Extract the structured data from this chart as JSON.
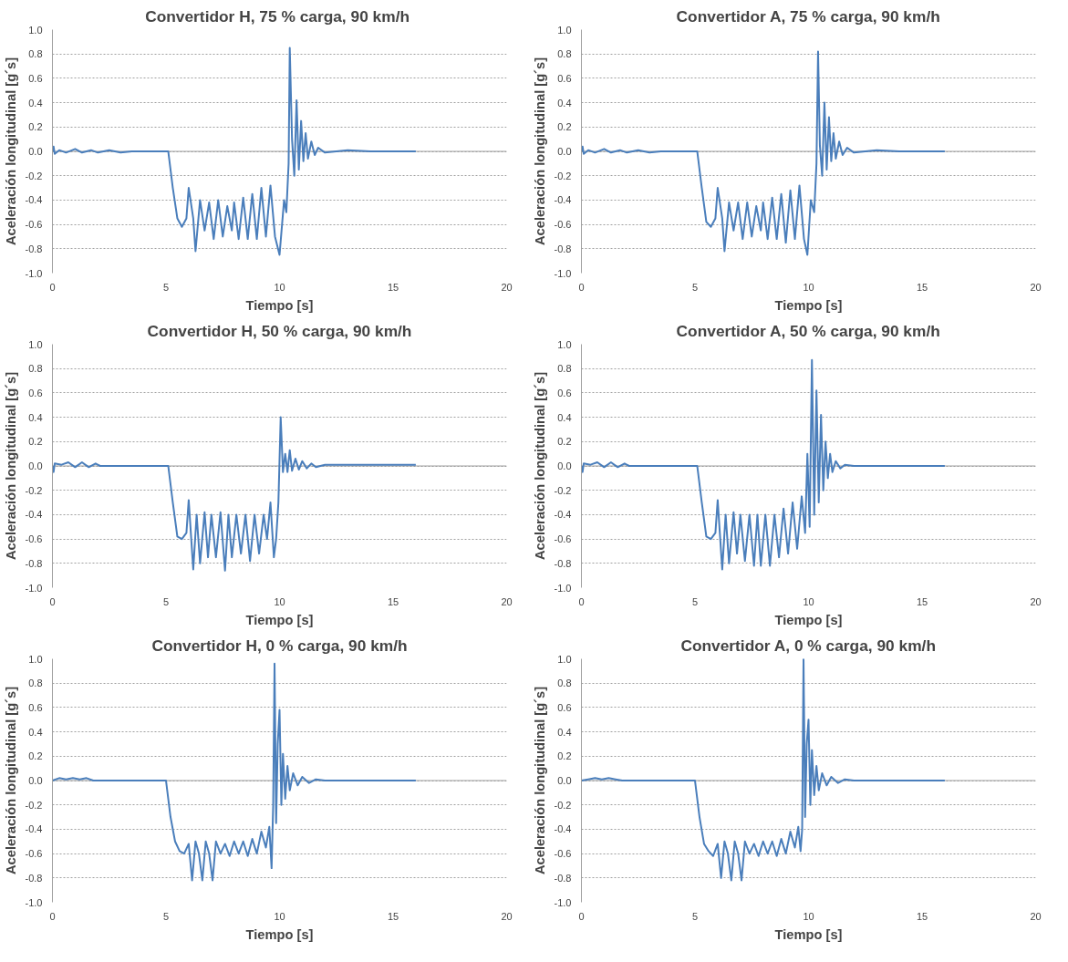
{
  "chart_data": [
    {
      "type": "line",
      "title": "Convertidor  H, 75 % carga, 90 km/h",
      "xlabel": "Tiempo [s]",
      "ylabel": "Aceleración longitudinal [g´s]",
      "xlim": [
        0,
        20
      ],
      "ylim": [
        -1,
        1
      ],
      "xticks": [
        0,
        5,
        10,
        15,
        20
      ],
      "yticks": [
        {
          "value": -1,
          "label": "-1.0"
        },
        {
          "value": -0.8,
          "label": "-0.8"
        },
        {
          "value": -0.6,
          "label": "-0.6"
        },
        {
          "value": -0.4,
          "label": "-0.4"
        },
        {
          "value": -0.2,
          "label": "-0.2"
        },
        {
          "value": 0,
          "label": "0.0"
        },
        {
          "value": 0.2,
          "label": "0.2"
        },
        {
          "value": 0.4,
          "label": "0.4"
        },
        {
          "value": 0.6,
          "label": "0.6"
        },
        {
          "value": 0.8,
          "label": "0.8"
        },
        {
          "value": 1,
          "label": "1.0"
        }
      ],
      "grid": "y",
      "legend": false,
      "series": [
        {
          "color": "#4a7ebb",
          "x": [
            0,
            0.05,
            0.1,
            0.3,
            0.6,
            1,
            1.3,
            1.7,
            2,
            2.5,
            3,
            3.5,
            5.1,
            5.3,
            5.5,
            5.7,
            5.9,
            6.0,
            6.2,
            6.3,
            6.5,
            6.7,
            6.9,
            7.1,
            7.3,
            7.5,
            7.7,
            7.9,
            8.0,
            8.2,
            8.4,
            8.6,
            8.8,
            9.0,
            9.2,
            9.4,
            9.6,
            9.8,
            10.0,
            10.2,
            10.3,
            10.4,
            10.45,
            10.55,
            10.65,
            10.75,
            10.85,
            10.95,
            11.05,
            11.15,
            11.25,
            11.4,
            11.55,
            11.7,
            12,
            13,
            14,
            16
          ],
          "values": [
            0,
            0.04,
            -0.02,
            0.01,
            -0.01,
            0.02,
            -0.01,
            0.01,
            -0.01,
            0.01,
            -0.01,
            0,
            0,
            -0.3,
            -0.55,
            -0.62,
            -0.55,
            -0.3,
            -0.55,
            -0.82,
            -0.4,
            -0.65,
            -0.42,
            -0.72,
            -0.4,
            -0.7,
            -0.45,
            -0.65,
            -0.42,
            -0.72,
            -0.38,
            -0.72,
            -0.35,
            -0.72,
            -0.3,
            -0.7,
            -0.28,
            -0.7,
            -0.85,
            -0.4,
            -0.5,
            -0.1,
            0.85,
            0.1,
            -0.2,
            0.42,
            -0.15,
            0.25,
            -0.08,
            0.15,
            -0.06,
            0.08,
            -0.03,
            0.03,
            -0.01,
            0.01,
            0,
            0
          ]
        }
      ]
    },
    {
      "type": "line",
      "title": "Convertidor A, 75 % carga, 90 km/h",
      "xlabel": "Tiempo [s]",
      "ylabel": "Aceleración longitudinal [g´s]",
      "xlim": [
        0,
        20
      ],
      "ylim": [
        -1,
        1
      ],
      "xticks": [
        0,
        5,
        10,
        15,
        20
      ],
      "yticks": [
        {
          "value": -1,
          "label": "-1.0"
        },
        {
          "value": -0.8,
          "label": "-0.8"
        },
        {
          "value": -0.6,
          "label": "-0.6"
        },
        {
          "value": -0.4,
          "label": "-0.4"
        },
        {
          "value": -0.2,
          "label": "-0.2"
        },
        {
          "value": 0,
          "label": "0.0"
        },
        {
          "value": 0.2,
          "label": "0.2"
        },
        {
          "value": 0.4,
          "label": "0.4"
        },
        {
          "value": 0.6,
          "label": "0.6"
        },
        {
          "value": 0.8,
          "label": "0.8"
        },
        {
          "value": 1,
          "label": "1.0"
        }
      ],
      "grid": "y",
      "legend": false,
      "series": [
        {
          "color": "#4a7ebb",
          "x": [
            0,
            0.05,
            0.1,
            0.3,
            0.6,
            1,
            1.3,
            1.7,
            2,
            2.5,
            3,
            3.5,
            5.1,
            5.3,
            5.5,
            5.7,
            5.9,
            6.0,
            6.2,
            6.3,
            6.5,
            6.7,
            6.9,
            7.1,
            7.3,
            7.5,
            7.7,
            7.9,
            8.0,
            8.2,
            8.4,
            8.6,
            8.8,
            9.0,
            9.2,
            9.4,
            9.6,
            9.8,
            9.95,
            10.1,
            10.25,
            10.35,
            10.42,
            10.5,
            10.6,
            10.7,
            10.8,
            10.9,
            11.0,
            11.1,
            11.2,
            11.35,
            11.5,
            11.7,
            12,
            13,
            14,
            16
          ],
          "values": [
            0,
            0.04,
            -0.02,
            0.01,
            -0.01,
            0.02,
            -0.01,
            0.01,
            -0.01,
            0.01,
            -0.01,
            0,
            0,
            -0.3,
            -0.58,
            -0.62,
            -0.55,
            -0.3,
            -0.55,
            -0.82,
            -0.42,
            -0.65,
            -0.42,
            -0.72,
            -0.42,
            -0.7,
            -0.45,
            -0.65,
            -0.42,
            -0.72,
            -0.38,
            -0.72,
            -0.35,
            -0.75,
            -0.32,
            -0.72,
            -0.28,
            -0.72,
            -0.85,
            -0.4,
            -0.5,
            -0.1,
            0.82,
            0.05,
            -0.2,
            0.4,
            -0.15,
            0.28,
            -0.08,
            0.15,
            -0.06,
            0.08,
            -0.03,
            0.03,
            -0.01,
            0.01,
            0,
            0
          ]
        }
      ]
    },
    {
      "type": "line",
      "title": "Convertidor H, 50 % carga, 90 km/h",
      "xlabel": "Tiempo [s]",
      "ylabel": "Aceleración longitudinal [g´s]",
      "xlim": [
        0,
        20
      ],
      "ylim": [
        -1,
        1
      ],
      "xticks": [
        0,
        5,
        10,
        15,
        20
      ],
      "yticks": [
        {
          "value": -1,
          "label": "-1.0"
        },
        {
          "value": -0.8,
          "label": "-0.8"
        },
        {
          "value": -0.6,
          "label": "-0.6"
        },
        {
          "value": -0.4,
          "label": "-0.4"
        },
        {
          "value": -0.2,
          "label": "-0.2"
        },
        {
          "value": 0,
          "label": "0.0"
        },
        {
          "value": 0.2,
          "label": "0.2"
        },
        {
          "value": 0.4,
          "label": "0.4"
        },
        {
          "value": 0.6,
          "label": "0.6"
        },
        {
          "value": 0.8,
          "label": "0.8"
        },
        {
          "value": 1,
          "label": "1.0"
        }
      ],
      "grid": "y",
      "legend": false,
      "series": [
        {
          "color": "#4a7ebb",
          "x": [
            0,
            0.05,
            0.1,
            0.4,
            0.7,
            1,
            1.3,
            1.6,
            1.9,
            2.1,
            3,
            5.1,
            5.3,
            5.5,
            5.7,
            5.9,
            6.0,
            6.2,
            6.35,
            6.5,
            6.7,
            6.85,
            7.0,
            7.2,
            7.4,
            7.6,
            7.75,
            7.9,
            8.1,
            8.3,
            8.5,
            8.7,
            8.9,
            9.1,
            9.3,
            9.45,
            9.6,
            9.75,
            9.85,
            9.95,
            10.05,
            10.15,
            10.25,
            10.35,
            10.45,
            10.55,
            10.7,
            10.85,
            11.0,
            11.2,
            11.4,
            11.6,
            12,
            13,
            14,
            16
          ],
          "values": [
            0,
            -0.05,
            0.02,
            0.01,
            0.03,
            -0.01,
            0.03,
            -0.01,
            0.02,
            0,
            0,
            0,
            -0.3,
            -0.58,
            -0.6,
            -0.55,
            -0.28,
            -0.85,
            -0.4,
            -0.8,
            -0.38,
            -0.75,
            -0.4,
            -0.75,
            -0.38,
            -0.86,
            -0.4,
            -0.75,
            -0.4,
            -0.72,
            -0.4,
            -0.78,
            -0.4,
            -0.72,
            -0.4,
            -0.6,
            -0.3,
            -0.75,
            -0.6,
            -0.3,
            0.4,
            -0.05,
            0.1,
            -0.05,
            0.13,
            -0.04,
            0.06,
            -0.03,
            0.04,
            -0.02,
            0.02,
            -0.01,
            0.01,
            0.01,
            0.01,
            0.01
          ]
        }
      ]
    },
    {
      "type": "line",
      "title": "Convertidor A, 50 % carga, 90 km/h",
      "xlabel": "Tiempo [s]",
      "ylabel": "Aceleración longitudinal [g´s]",
      "xlim": [
        0,
        20
      ],
      "ylim": [
        -1,
        1
      ],
      "xticks": [
        0,
        5,
        10,
        15,
        20
      ],
      "yticks": [
        {
          "value": -1,
          "label": "-1.0"
        },
        {
          "value": -0.8,
          "label": "-0.8"
        },
        {
          "value": -0.6,
          "label": "-0.6"
        },
        {
          "value": -0.4,
          "label": "-0.4"
        },
        {
          "value": -0.2,
          "label": "-0.2"
        },
        {
          "value": 0,
          "label": "0.0"
        },
        {
          "value": 0.2,
          "label": "0.2"
        },
        {
          "value": 0.4,
          "label": "0.4"
        },
        {
          "value": 0.6,
          "label": "0.6"
        },
        {
          "value": 0.8,
          "label": "0.8"
        },
        {
          "value": 1,
          "label": "1.0"
        }
      ],
      "grid": "y",
      "legend": false,
      "series": [
        {
          "color": "#4a7ebb",
          "x": [
            0,
            0.05,
            0.1,
            0.4,
            0.7,
            1,
            1.3,
            1.6,
            1.9,
            2.1,
            3,
            5.1,
            5.3,
            5.5,
            5.7,
            5.9,
            6.0,
            6.2,
            6.35,
            6.5,
            6.7,
            6.85,
            7.0,
            7.2,
            7.4,
            7.6,
            7.75,
            7.9,
            8.1,
            8.3,
            8.5,
            8.7,
            8.9,
            9.1,
            9.3,
            9.5,
            9.7,
            9.85,
            9.95,
            10.05,
            10.15,
            10.25,
            10.35,
            10.45,
            10.55,
            10.65,
            10.75,
            10.85,
            10.95,
            11.05,
            11.2,
            11.4,
            11.6,
            12,
            13,
            14,
            16
          ],
          "values": [
            0,
            -0.05,
            0.02,
            0.01,
            0.03,
            -0.01,
            0.03,
            -0.01,
            0.02,
            0,
            0,
            0,
            -0.3,
            -0.58,
            -0.6,
            -0.55,
            -0.28,
            -0.85,
            -0.4,
            -0.8,
            -0.38,
            -0.72,
            -0.4,
            -0.78,
            -0.4,
            -0.82,
            -0.4,
            -0.82,
            -0.4,
            -0.82,
            -0.4,
            -0.75,
            -0.35,
            -0.72,
            -0.3,
            -0.68,
            -0.25,
            -0.55,
            0.1,
            -0.5,
            0.87,
            -0.4,
            0.62,
            -0.3,
            0.42,
            -0.2,
            0.2,
            -0.1,
            0.1,
            -0.05,
            0.04,
            -0.02,
            0.01,
            0,
            0,
            0,
            0
          ]
        }
      ]
    },
    {
      "type": "line",
      "title": "Convertidor H, 0 % carga, 90 km/h",
      "xlabel": "Tiempo [s]",
      "ylabel": "Aceleración longitudinal [g´s]",
      "xlim": [
        0,
        20
      ],
      "ylim": [
        -1,
        1
      ],
      "xticks": [
        0,
        5,
        10,
        15,
        20
      ],
      "yticks": [
        {
          "value": -1,
          "label": "-1.0"
        },
        {
          "value": -0.8,
          "label": "-0.8"
        },
        {
          "value": -0.6,
          "label": "-0.6"
        },
        {
          "value": -0.4,
          "label": "-0.4"
        },
        {
          "value": -0.2,
          "label": "-0.2"
        },
        {
          "value": 0,
          "label": "0.0"
        },
        {
          "value": 0.2,
          "label": "0.2"
        },
        {
          "value": 0.4,
          "label": "0.4"
        },
        {
          "value": 0.6,
          "label": "0.6"
        },
        {
          "value": 0.8,
          "label": "0.8"
        },
        {
          "value": 1,
          "label": "1.0"
        }
      ],
      "grid": "y",
      "legend": false,
      "series": [
        {
          "color": "#4a7ebb",
          "x": [
            0,
            0.3,
            0.6,
            0.9,
            1.2,
            1.5,
            1.8,
            2.5,
            3,
            5.0,
            5.2,
            5.4,
            5.6,
            5.8,
            6.0,
            6.15,
            6.3,
            6.45,
            6.6,
            6.75,
            6.9,
            7.05,
            7.2,
            7.4,
            7.6,
            7.8,
            8.0,
            8.2,
            8.4,
            8.6,
            8.8,
            9.0,
            9.2,
            9.4,
            9.55,
            9.65,
            9.72,
            9.78,
            9.85,
            9.92,
            10.0,
            10.08,
            10.15,
            10.25,
            10.35,
            10.45,
            10.6,
            10.8,
            11.0,
            11.3,
            11.6,
            12,
            13,
            14,
            16
          ],
          "values": [
            0,
            0.02,
            0.01,
            0.02,
            0.01,
            0.02,
            0,
            0,
            0,
            0,
            -0.3,
            -0.5,
            -0.58,
            -0.6,
            -0.52,
            -0.82,
            -0.5,
            -0.6,
            -0.82,
            -0.5,
            -0.6,
            -0.82,
            -0.5,
            -0.6,
            -0.52,
            -0.62,
            -0.5,
            -0.6,
            -0.5,
            -0.62,
            -0.48,
            -0.6,
            -0.42,
            -0.55,
            -0.38,
            -0.72,
            -0.2,
            0.96,
            -0.35,
            0.3,
            0.58,
            -0.2,
            0.22,
            -0.15,
            0.12,
            -0.08,
            0.06,
            -0.04,
            0.03,
            -0.02,
            0.01,
            0,
            0,
            0,
            0
          ]
        }
      ]
    },
    {
      "type": "line",
      "title": "Convertidor A, 0 % carga, 90 km/h",
      "xlabel": "Tiempo [s]",
      "ylabel": "Aceleración longitudinal [g´s]",
      "xlim": [
        0,
        20
      ],
      "ylim": [
        -1,
        1
      ],
      "xticks": [
        0,
        5,
        10,
        15,
        20
      ],
      "yticks": [
        {
          "value": -1,
          "label": "-1.0"
        },
        {
          "value": -0.8,
          "label": "-0.8"
        },
        {
          "value": -0.6,
          "label": "-0.6"
        },
        {
          "value": -0.4,
          "label": "-0.4"
        },
        {
          "value": -0.2,
          "label": "-0.2"
        },
        {
          "value": 0,
          "label": "0.0"
        },
        {
          "value": 0.2,
          "label": "0.2"
        },
        {
          "value": 0.4,
          "label": "0.4"
        },
        {
          "value": 0.6,
          "label": "0.6"
        },
        {
          "value": 0.8,
          "label": "0.8"
        },
        {
          "value": 1,
          "label": "1.0"
        }
      ],
      "grid": "y",
      "legend": false,
      "series": [
        {
          "color": "#4a7ebb",
          "x": [
            0,
            0.3,
            0.6,
            0.9,
            1.2,
            1.5,
            1.8,
            2.5,
            3,
            5.0,
            5.2,
            5.4,
            5.6,
            5.8,
            6.0,
            6.15,
            6.3,
            6.45,
            6.6,
            6.75,
            6.9,
            7.05,
            7.2,
            7.4,
            7.6,
            7.8,
            8.0,
            8.2,
            8.4,
            8.6,
            8.8,
            9.0,
            9.2,
            9.4,
            9.55,
            9.65,
            9.72,
            9.78,
            9.85,
            9.92,
            10.0,
            10.08,
            10.15,
            10.25,
            10.35,
            10.45,
            10.6,
            10.8,
            11.0,
            11.3,
            11.6,
            12,
            13,
            14,
            16
          ],
          "values": [
            0,
            0.01,
            0.02,
            0.01,
            0.02,
            0.01,
            0,
            0,
            0,
            0,
            -0.3,
            -0.52,
            -0.58,
            -0.62,
            -0.52,
            -0.8,
            -0.5,
            -0.6,
            -0.82,
            -0.5,
            -0.6,
            -0.82,
            -0.5,
            -0.6,
            -0.52,
            -0.62,
            -0.5,
            -0.6,
            -0.5,
            -0.62,
            -0.48,
            -0.6,
            -0.42,
            -0.55,
            -0.38,
            -0.58,
            -0.4,
            1.0,
            -0.3,
            0.3,
            0.5,
            -0.2,
            0.25,
            -0.12,
            0.12,
            -0.08,
            0.06,
            -0.04,
            0.03,
            -0.02,
            0.01,
            0,
            0,
            0,
            0
          ]
        }
      ]
    }
  ]
}
